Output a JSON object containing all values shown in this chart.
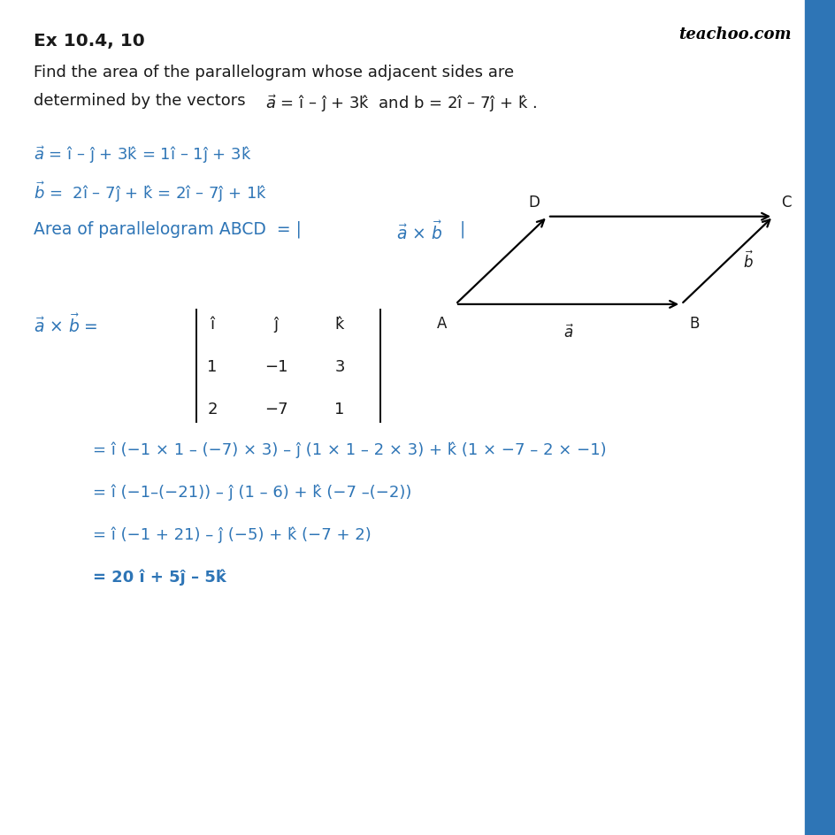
{
  "bg_color": "#ffffff",
  "blue_color": "#2e75b6",
  "black_color": "#1a1a1a",
  "border_color": "#2e75b6",
  "title": "Ex 10.4, 10",
  "problem_line1": "Find the area of the parallelogram whose adjacent sides are",
  "problem_line2": "determined by the vectors ",
  "problem_inline": "$\\vec{a}$ = î – ĵ + 3$\\hat{k}$  and b = 2î – 7ĵ + $\\hat{k}$ .",
  "eq_a": "$\\vec{a}$ = î – ĵ + 3$\\hat{k}$ = 1î – 1ĵ + 3$\\hat{k}$",
  "eq_b": "$\\vec{b}$ =  2î – 7ĵ + $\\hat{k}$ = 2î – 7ĵ + 1$\\hat{k}$",
  "area_line": "Area of parallelogram ABCD  = |$\\vec{a}$ × $\\vec{b}$|",
  "cross_lhs": "$\\vec{a}$ × $\\vec{b}$ = ",
  "matrix_rows": [
    [
      "î",
      "ĵ",
      "$\\hat{k}$"
    ],
    [
      "1",
      "−1",
      "3"
    ],
    [
      "2",
      "−7",
      "1"
    ]
  ],
  "step1": "= î (−1 × 1 – (−7) × 3) – ĵ (1 × 1 – 2 × 3) + $\\hat{k}$ (1 × −7 – 2 × −1)",
  "step2": "= î (−1–(−21)) – ĵ (1 – 6) + $\\hat{k}$ (−7 –(−2))",
  "step3": "= î (−1 + 21) – ĵ (−5) + $\\hat{k}$ (−7 + 2)",
  "step4": "= 20 î + 5ĵ – 5$\\hat{k}$",
  "para_A": [
    0.545,
    0.635
  ],
  "para_B": [
    0.815,
    0.635
  ],
  "para_C": [
    0.925,
    0.74
  ],
  "para_D": [
    0.655,
    0.74
  ]
}
